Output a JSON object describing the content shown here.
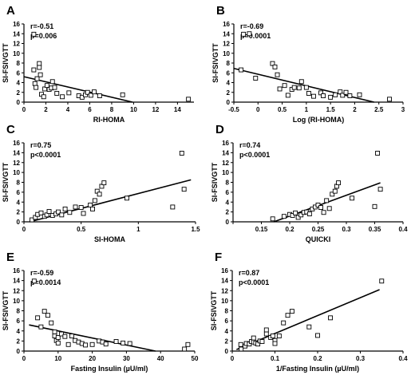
{
  "chart_data": [
    {
      "type": "scatter",
      "panel": "A",
      "r_text": "r=-0.51",
      "p_text": "p=0.006",
      "xlabel": "RI-HOMA",
      "ylabel": "SI-FSIVGTT",
      "xlim": [
        0,
        15.5
      ],
      "ylim": [
        0,
        16
      ],
      "xticks": [
        0,
        2,
        4,
        6,
        8,
        10,
        12,
        14
      ],
      "yticks": [
        0,
        2,
        4,
        6,
        8,
        10,
        12,
        14,
        16
      ],
      "points": [
        [
          0.9,
          13.9
        ],
        [
          0.9,
          6.6
        ],
        [
          1.0,
          3.8
        ],
        [
          1.1,
          3.0
        ],
        [
          1.2,
          4.8
        ],
        [
          1.4,
          7.9
        ],
        [
          1.4,
          7.1
        ],
        [
          1.5,
          5.6
        ],
        [
          1.6,
          1.6
        ],
        [
          1.8,
          1.1
        ],
        [
          1.9,
          2.7
        ],
        [
          2.1,
          3.4
        ],
        [
          2.3,
          2.6
        ],
        [
          2.5,
          2.9
        ],
        [
          2.6,
          4.2
        ],
        [
          2.8,
          3.0
        ],
        [
          3.0,
          1.8
        ],
        [
          3.5,
          1.1
        ],
        [
          4.1,
          1.9
        ],
        [
          5.0,
          1.3
        ],
        [
          5.3,
          1.0
        ],
        [
          5.6,
          1.5
        ],
        [
          5.8,
          2.0
        ],
        [
          6.1,
          1.4
        ],
        [
          6.4,
          2.1
        ],
        [
          6.9,
          1.3
        ],
        [
          9.0,
          1.5
        ],
        [
          15.0,
          0.6
        ]
      ],
      "fit_line": [
        [
          0,
          5.2
        ],
        [
          9.9,
          0
        ]
      ]
    },
    {
      "type": "scatter",
      "panel": "B",
      "r_text": "r=-0.69",
      "p_text": "p=0.0001",
      "xlabel": "Log (RI-HOMA)",
      "ylabel": "SI-FSIVGTT",
      "xlim": [
        -0.5,
        3
      ],
      "ylim": [
        0,
        16
      ],
      "xticks": [
        -0.5,
        0,
        0.5,
        1,
        1.5,
        2,
        2.5,
        3
      ],
      "xtick_labels": [
        "-0.5",
        "0",
        "0.5",
        "1",
        "1.5",
        "2",
        "2.5",
        "3"
      ],
      "yticks": [
        0,
        2,
        4,
        6,
        8,
        10,
        12,
        14,
        16
      ],
      "points": [
        [
          -0.35,
          6.6
        ],
        [
          -0.3,
          13.9
        ],
        [
          -0.18,
          14.0
        ],
        [
          -0.05,
          4.9
        ],
        [
          0.3,
          7.9
        ],
        [
          0.35,
          7.2
        ],
        [
          0.4,
          5.6
        ],
        [
          0.45,
          2.7
        ],
        [
          0.55,
          3.4
        ],
        [
          0.62,
          1.4
        ],
        [
          0.7,
          2.6
        ],
        [
          0.75,
          3.0
        ],
        [
          0.85,
          2.9
        ],
        [
          0.9,
          4.2
        ],
        [
          1.0,
          3.0
        ],
        [
          1.05,
          1.8
        ],
        [
          1.15,
          1.2
        ],
        [
          1.3,
          1.9
        ],
        [
          1.35,
          1.3
        ],
        [
          1.5,
          1.0
        ],
        [
          1.6,
          1.5
        ],
        [
          1.7,
          2.1
        ],
        [
          1.75,
          1.4
        ],
        [
          1.82,
          2.0
        ],
        [
          1.9,
          1.3
        ],
        [
          2.1,
          1.5
        ],
        [
          2.72,
          0.6
        ]
      ],
      "fit_line": [
        [
          -0.5,
          6.9
        ],
        [
          2.4,
          0
        ]
      ]
    },
    {
      "type": "scatter",
      "panel": "C",
      "r_text": "r=0.75",
      "p_text": "p<0.0001",
      "xlabel": "SI-HOMA",
      "ylabel": "SI-FSIVGTT",
      "xlim": [
        0,
        1.5
      ],
      "ylim": [
        0,
        16
      ],
      "xticks": [
        0,
        0.5,
        1,
        1.5
      ],
      "xtick_labels": [
        "0",
        "0.5",
        "1",
        "1.5"
      ],
      "yticks": [
        0,
        2,
        4,
        6,
        8,
        10,
        12,
        14,
        16
      ],
      "points": [
        [
          0.07,
          0.4
        ],
        [
          0.1,
          0.9
        ],
        [
          0.12,
          1.5
        ],
        [
          0.15,
          1.8
        ],
        [
          0.18,
          1.1
        ],
        [
          0.2,
          1.4
        ],
        [
          0.22,
          2.1
        ],
        [
          0.25,
          1.3
        ],
        [
          0.28,
          1.6
        ],
        [
          0.3,
          2.0
        ],
        [
          0.33,
          1.4
        ],
        [
          0.36,
          2.6
        ],
        [
          0.4,
          1.9
        ],
        [
          0.45,
          3.0
        ],
        [
          0.5,
          2.9
        ],
        [
          0.52,
          1.7
        ],
        [
          0.58,
          3.4
        ],
        [
          0.6,
          2.6
        ],
        [
          0.62,
          4.3
        ],
        [
          0.64,
          6.2
        ],
        [
          0.66,
          5.6
        ],
        [
          0.68,
          7.2
        ],
        [
          0.7,
          7.9
        ],
        [
          0.9,
          4.8
        ],
        [
          1.3,
          3.0
        ],
        [
          1.38,
          13.9
        ],
        [
          1.4,
          6.6
        ]
      ],
      "fit_line": [
        [
          0.05,
          0
        ],
        [
          1.46,
          8.5
        ]
      ]
    },
    {
      "type": "scatter",
      "panel": "D",
      "r_text": "r=0.74",
      "p_text": "p<0.0001",
      "xlabel": "QUICKI",
      "ylabel": "SI-FSIVGTT",
      "xlim": [
        0.1,
        0.4
      ],
      "ylim": [
        0,
        16
      ],
      "xticks": [
        0.1,
        0.15,
        0.2,
        0.25,
        0.3,
        0.35,
        0.4
      ],
      "xtick_labels": [
        "",
        "0.15",
        "0.2",
        "0.25",
        "0.3",
        "0.35",
        "0.4"
      ],
      "yticks": [
        0,
        2,
        4,
        6,
        8,
        10,
        12,
        14,
        16
      ],
      "points": [
        [
          0.17,
          0.6
        ],
        [
          0.19,
          1.1
        ],
        [
          0.2,
          1.5
        ],
        [
          0.205,
          1.3
        ],
        [
          0.21,
          1.8
        ],
        [
          0.215,
          0.9
        ],
        [
          0.22,
          1.4
        ],
        [
          0.225,
          1.9
        ],
        [
          0.23,
          2.0
        ],
        [
          0.235,
          1.6
        ],
        [
          0.24,
          2.6
        ],
        [
          0.245,
          3.0
        ],
        [
          0.25,
          3.4
        ],
        [
          0.255,
          2.9
        ],
        [
          0.26,
          1.9
        ],
        [
          0.265,
          4.3
        ],
        [
          0.27,
          2.7
        ],
        [
          0.275,
          5.6
        ],
        [
          0.28,
          6.2
        ],
        [
          0.283,
          7.2
        ],
        [
          0.286,
          7.9
        ],
        [
          0.31,
          4.8
        ],
        [
          0.35,
          3.1
        ],
        [
          0.355,
          13.9
        ],
        [
          0.36,
          6.6
        ]
      ],
      "fit_line": [
        [
          0.172,
          0
        ],
        [
          0.36,
          7.9
        ]
      ]
    },
    {
      "type": "scatter",
      "panel": "E",
      "r_text": "r=-0.59",
      "p_text": "p=0.0014",
      "xlabel": "Fasting Insulin (µU/ml)",
      "ylabel": "SI-FSIVGTT",
      "xlim": [
        0,
        50
      ],
      "ylim": [
        0,
        16
      ],
      "xticks": [
        0,
        10,
        20,
        30,
        40,
        50
      ],
      "yticks": [
        0,
        2,
        4,
        6,
        8,
        10,
        12,
        14,
        16
      ],
      "points": [
        [
          3,
          13.9
        ],
        [
          4,
          6.6
        ],
        [
          5,
          4.8
        ],
        [
          6,
          7.9
        ],
        [
          7,
          7.1
        ],
        [
          8,
          5.6
        ],
        [
          9,
          3.8
        ],
        [
          9,
          3.0
        ],
        [
          9.5,
          2.1
        ],
        [
          10,
          2.7
        ],
        [
          10,
          1.6
        ],
        [
          11,
          3.4
        ],
        [
          12,
          2.9
        ],
        [
          13,
          1.3
        ],
        [
          14,
          3.0
        ],
        [
          15,
          2.1
        ],
        [
          16,
          1.8
        ],
        [
          17,
          1.5
        ],
        [
          18,
          1.2
        ],
        [
          20,
          1.3
        ],
        [
          22,
          2.0
        ],
        [
          23,
          1.8
        ],
        [
          24,
          1.4
        ],
        [
          27,
          1.9
        ],
        [
          29,
          1.6
        ],
        [
          31,
          1.5
        ],
        [
          47,
          0.4
        ],
        [
          48,
          1.3
        ]
      ],
      "fit_line": [
        [
          1.5,
          5.2
        ],
        [
          38.5,
          0
        ]
      ]
    },
    {
      "type": "scatter",
      "panel": "F",
      "r_text": "r=0.87",
      "p_text": "p<0.0001",
      "xlabel": "1/Fasting Insulin (µU/ml)",
      "ylabel": "SI-FSIVGTT",
      "xlim": [
        0,
        0.4
      ],
      "ylim": [
        0,
        16
      ],
      "xticks": [
        0,
        0.1,
        0.2,
        0.3,
        0.4
      ],
      "xtick_labels": [
        "0",
        "0.1",
        "0.2",
        "0.3",
        "0.4"
      ],
      "yticks": [
        0,
        2,
        4,
        6,
        8,
        10,
        12,
        14,
        16
      ],
      "points": [
        [
          0.021,
          0.4
        ],
        [
          0.02,
          1.3
        ],
        [
          0.03,
          1.0
        ],
        [
          0.033,
          1.5
        ],
        [
          0.04,
          1.4
        ],
        [
          0.045,
          1.9
        ],
        [
          0.05,
          1.8
        ],
        [
          0.05,
          2.6
        ],
        [
          0.055,
          1.6
        ],
        [
          0.06,
          1.4
        ],
        [
          0.065,
          2.0
        ],
        [
          0.07,
          1.9
        ],
        [
          0.08,
          3.4
        ],
        [
          0.08,
          4.2
        ],
        [
          0.09,
          2.7
        ],
        [
          0.095,
          3.0
        ],
        [
          0.1,
          2.1
        ],
        [
          0.1,
          1.5
        ],
        [
          0.11,
          3.0
        ],
        [
          0.12,
          5.6
        ],
        [
          0.13,
          7.1
        ],
        [
          0.14,
          7.9
        ],
        [
          0.18,
          4.8
        ],
        [
          0.2,
          3.1
        ],
        [
          0.23,
          6.6
        ],
        [
          0.35,
          13.9
        ]
      ],
      "fit_line": [
        [
          0.01,
          0.3
        ],
        [
          0.345,
          12.2
        ]
      ]
    }
  ]
}
